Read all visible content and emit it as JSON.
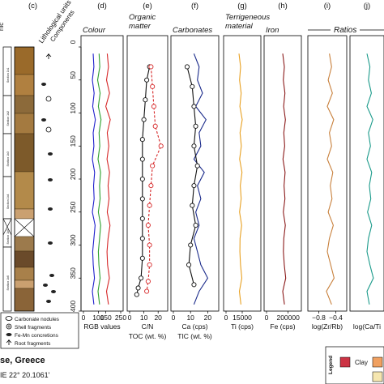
{
  "chart_data": {
    "type": "line",
    "y_axis": {
      "ylim": [
        0,
        400
      ],
      "ticks": [
        0,
        50,
        100,
        150,
        200,
        250,
        300,
        350,
        400
      ],
      "inverted": true
    },
    "header": {
      "left_labels": [
        "nic",
        "(c)"
      ],
      "lith_label": "Lithological units",
      "components_label": "Components",
      "sections": [
        "Section 1b1",
        "Section 1b2",
        "Section 1b3",
        "Section 1b4",
        "Section 1b5",
        "Section 1b6"
      ]
    },
    "ratios_label": "Ratios",
    "panels": [
      {
        "letter": "(d)",
        "title": "Colour",
        "xlabel": "RGB values",
        "xlim": [
          0,
          250
        ],
        "ticks": [
          0,
          100,
          150,
          250
        ],
        "tick_labels": [
          "0",
          "100",
          "150",
          "250"
        ],
        "series": [
          {
            "color": "#1f1fcc",
            "depth": [
              10,
              30,
              50,
              70,
              90,
              110,
              130,
              150,
              170,
              190,
              210,
              230,
              250,
              270,
              290,
              310,
              330,
              350,
              370,
              390
            ],
            "values": [
              65,
              70,
              60,
              72,
              62,
              80,
              65,
              70,
              60,
              75,
              68,
              72,
              60,
              78,
              70,
              62,
              66,
              74,
              60,
              70
            ]
          },
          {
            "color": "#2ca02c",
            "depth": [
              10,
              30,
              50,
              70,
              90,
              110,
              130,
              150,
              170,
              190,
              210,
              230,
              250,
              270,
              290,
              310,
              330,
              350,
              370,
              390
            ],
            "values": [
              105,
              110,
              95,
              112,
              100,
              118,
              105,
              110,
              98,
              115,
              108,
              112,
              100,
              116,
              108,
              100,
              104,
              112,
              98,
              108
            ]
          },
          {
            "color": "#d62728",
            "depth": [
              10,
              30,
              50,
              70,
              90,
              110,
              130,
              150,
              170,
              190,
              210,
              230,
              250,
              270,
              290,
              310,
              330,
              350,
              370,
              390
            ],
            "values": [
              160,
              168,
              155,
              175,
              150,
              180,
              160,
              170,
              158,
              175,
              165,
              172,
              160,
              178,
              165,
              158,
              162,
              174,
              155,
              168
            ]
          }
        ]
      },
      {
        "letter": "(e)",
        "title": "Organic\nmatter",
        "xlabel": "C/N",
        "xlabel2": "TOC (wt. %)",
        "xlim": [
          0,
          25
        ],
        "ticks": [
          0,
          10,
          20
        ],
        "tick_labels": [
          "0",
          "10",
          "20"
        ],
        "series": [
          {
            "color": "#111111",
            "marker": "circle",
            "depth": [
              30,
              50,
              80,
              110,
              140,
              170,
              200,
              230,
              260,
              290,
              320,
              350,
              365,
              375
            ],
            "values": [
              14,
              12,
              11,
              10,
              9,
              9,
              9,
              9,
              9,
              9,
              9,
              8,
              6,
              5
            ]
          },
          {
            "color": "#d62728",
            "marker": "circle",
            "dash": true,
            "depth": [
              30,
              60,
              90,
              120,
              150,
              180,
              210,
              240,
              270,
              300,
              330,
              355,
              370
            ],
            "values": [
              15,
              16,
              17,
              18,
              22,
              16,
              15,
              14,
              13,
              14,
              14,
              13,
              12
            ]
          }
        ]
      },
      {
        "letter": "(f)",
        "title": "Carbonates",
        "xlabel": "Ca (cps)",
        "xlabel2": "TIC (wt. %)",
        "xlim": [
          0,
          25
        ],
        "ticks": [
          0,
          10,
          20
        ],
        "tick_labels": [
          "0",
          "10",
          "20"
        ],
        "series": [
          {
            "color": "#1a2a8a",
            "depth": [
              10,
              30,
              50,
              70,
              90,
              110,
              130,
              150,
              170,
              190,
              210,
              230,
              250,
              270,
              290,
              310,
              330,
              350,
              370,
              390
            ],
            "values": [
              12,
              15,
              14,
              17,
              13,
              19,
              15,
              16,
              12,
              18,
              14,
              16,
              13,
              15,
              12,
              14,
              16,
              20,
              15,
              12
            ]
          },
          {
            "color": "#111111",
            "marker": "circle",
            "depth": [
              30,
              60,
              90,
              120,
              150,
              180,
              210,
              240,
              270,
              300,
              330,
              360
            ],
            "values": [
              8,
              11,
              12,
              13,
              12,
              14,
              12,
              11,
              13,
              10,
              9,
              12
            ]
          }
        ]
      },
      {
        "letter": "(g)",
        "title": "Terrigeneous\nmaterial",
        "xlabel": "Ti (cps)",
        "xlim": [
          0,
          30000
        ],
        "ticks": [
          0,
          15000
        ],
        "tick_labels": [
          "0",
          "15000"
        ],
        "series": [
          {
            "color": "#e8a020",
            "depth": [
              10,
              30,
              50,
              70,
              90,
              110,
              130,
              150,
              170,
              190,
              210,
              230,
              250,
              270,
              290,
              310,
              330,
              350,
              370,
              390
            ],
            "values": [
              12000,
              13500,
              12500,
              14000,
              12800,
              15000,
              13000,
              14200,
              12600,
              14800,
              13200,
              14000,
              12500,
              14500,
              13000,
              12800,
              13400,
              14600,
              12400,
              13800
            ]
          }
        ]
      },
      {
        "letter": "(h)",
        "title": "Iron",
        "xlabel": "Fe (cps)",
        "xlim": [
          0,
          300000
        ],
        "ticks": [
          0,
          200000
        ],
        "tick_labels": [
          "0",
          "200000"
        ],
        "series": [
          {
            "color": "#8b1a1a",
            "depth": [
              10,
              30,
              50,
              70,
              90,
              110,
              130,
              150,
              170,
              190,
              210,
              230,
              250,
              270,
              290,
              310,
              330,
              350,
              370,
              390
            ],
            "values": [
              150000,
              165000,
              155000,
              170000,
              158000,
              175000,
              160000,
              168000,
              152000,
              172000,
              162000,
              170000,
              155000,
              174000,
              160000,
              156000,
              164000,
              178000,
              150000,
              166000
            ]
          }
        ]
      },
      {
        "letter": "(i)",
        "title": "",
        "xlabel": "log(Zr/Rb)",
        "xlim": [
          -1.0,
          -0.2
        ],
        "ticks": [
          -0.8,
          -0.4
        ],
        "tick_labels": [
          "−0.8",
          "−0.4"
        ],
        "series": [
          {
            "color": "#c8803c",
            "depth": [
              10,
              30,
              50,
              70,
              90,
              110,
              130,
              150,
              170,
              190,
              210,
              230,
              250,
              270,
              290,
              310,
              330,
              350,
              370,
              390
            ],
            "values": [
              -0.55,
              -0.5,
              -0.58,
              -0.48,
              -0.6,
              -0.45,
              -0.55,
              -0.5,
              -0.6,
              -0.47,
              -0.53,
              -0.49,
              -0.58,
              -0.46,
              -0.55,
              -0.6,
              -0.52,
              -0.44,
              -0.62,
              -0.5
            ]
          }
        ]
      },
      {
        "letter": "(j)",
        "title": "",
        "xlabel": "log(Ca/Ti",
        "xlim": [
          0,
          1
        ],
        "ticks": [],
        "tick_labels": [],
        "series": [
          {
            "color": "#1a9a8a",
            "depth": [
              10,
              30,
              50,
              70,
              90,
              110,
              130,
              150,
              170,
              190,
              210,
              230,
              250,
              270,
              290,
              310,
              330,
              350,
              370,
              390
            ],
            "values": [
              0.5,
              0.6,
              0.55,
              0.65,
              0.5,
              0.7,
              0.55,
              0.62,
              0.5,
              0.66,
              0.58,
              0.63,
              0.52,
              0.66,
              0.55,
              0.5,
              0.6,
              0.72,
              0.5,
              0.58
            ]
          }
        ]
      }
    ],
    "legend_components": [
      {
        "icon": "carbonate-nodules-icon",
        "label": "Carbonate nodules"
      },
      {
        "icon": "shell-fragments-icon",
        "label": "Shell fragments"
      },
      {
        "icon": "fe-mn-icon",
        "label": "Fe-Mn concretions"
      },
      {
        "icon": "root-fragments-icon",
        "label": "Root fragments"
      }
    ],
    "location": {
      "title": "se, Greece",
      "coords": "IE 22° 20.1061'"
    },
    "legend_box": {
      "title": "Legend",
      "items": [
        {
          "color": "#cc3344",
          "label": ""
        },
        {
          "color": "#f0a060",
          "label": "Clay"
        },
        {
          "color": "#f5e6b0",
          "label": ""
        }
      ]
    }
  }
}
